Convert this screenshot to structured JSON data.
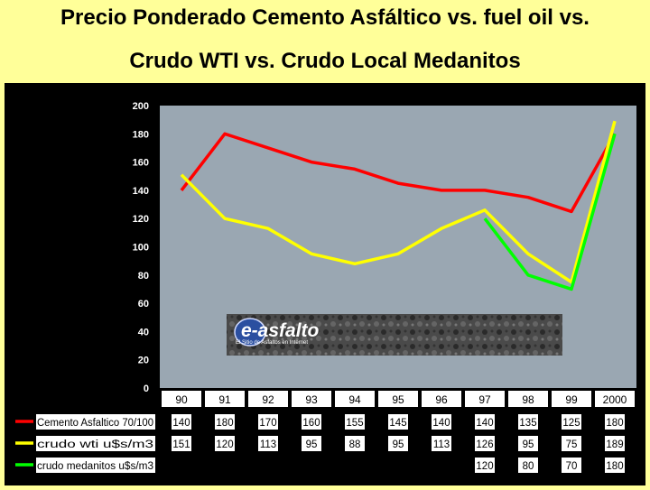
{
  "title_line1": "Precio Ponderado Cemento Asfáltico vs. fuel oil vs.",
  "title_line2": "Crudo WTI vs. Crudo Local Medanitos",
  "logo": {
    "brand": "e-asfalto",
    "tagline": "El Sitio de Asfaltos en Internet"
  },
  "chart_data": {
    "type": "line",
    "categories": [
      "90",
      "91",
      "92",
      "93",
      "94",
      "95",
      "96",
      "97",
      "98",
      "99",
      "2000"
    ],
    "ylim": [
      0,
      200
    ],
    "yticks": [
      0,
      20,
      40,
      60,
      80,
      100,
      120,
      140,
      160,
      180,
      200
    ],
    "xlabel": "",
    "ylabel": "",
    "background": "#9aa7b2",
    "series": [
      {
        "name": "Cemento Asfaltico 70/100",
        "color": "#ff0000",
        "values": [
          140,
          180,
          170,
          160,
          155,
          145,
          140,
          140,
          135,
          125,
          180
        ]
      },
      {
        "name": "crudo wti u$s/m3",
        "color": "#ffff00",
        "values": [
          151,
          120,
          113,
          95,
          88,
          95,
          113,
          126,
          95,
          75,
          189
        ]
      },
      {
        "name": "crudo medanitos u$s/m3",
        "color": "#00ff00",
        "values": [
          null,
          null,
          null,
          null,
          null,
          null,
          null,
          120,
          80,
          70,
          180
        ]
      }
    ]
  }
}
